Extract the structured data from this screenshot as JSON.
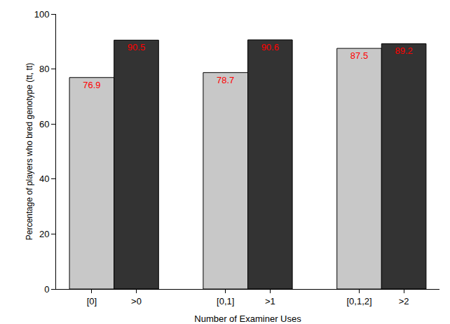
{
  "chart_data": {
    "type": "bar",
    "x_label": "Number of Examiner Uses",
    "y_label": "Percentage of players who bred genotype (tt, tt)",
    "categories": [
      "[0]",
      ">0",
      "[0,1]",
      ">1",
      "[0,1,2]",
      ">2"
    ],
    "values": [
      76.9,
      90.5,
      78.7,
      90.6,
      87.5,
      89.2
    ],
    "colors": [
      "#c8c8c8",
      "#333333",
      "#c8c8c8",
      "#333333",
      "#c8c8c8",
      "#333333"
    ],
    "ylim": [
      0,
      100
    ],
    "yticks": [
      0,
      20,
      40,
      60,
      80,
      100
    ],
    "grid": false,
    "data_labels": true
  }
}
